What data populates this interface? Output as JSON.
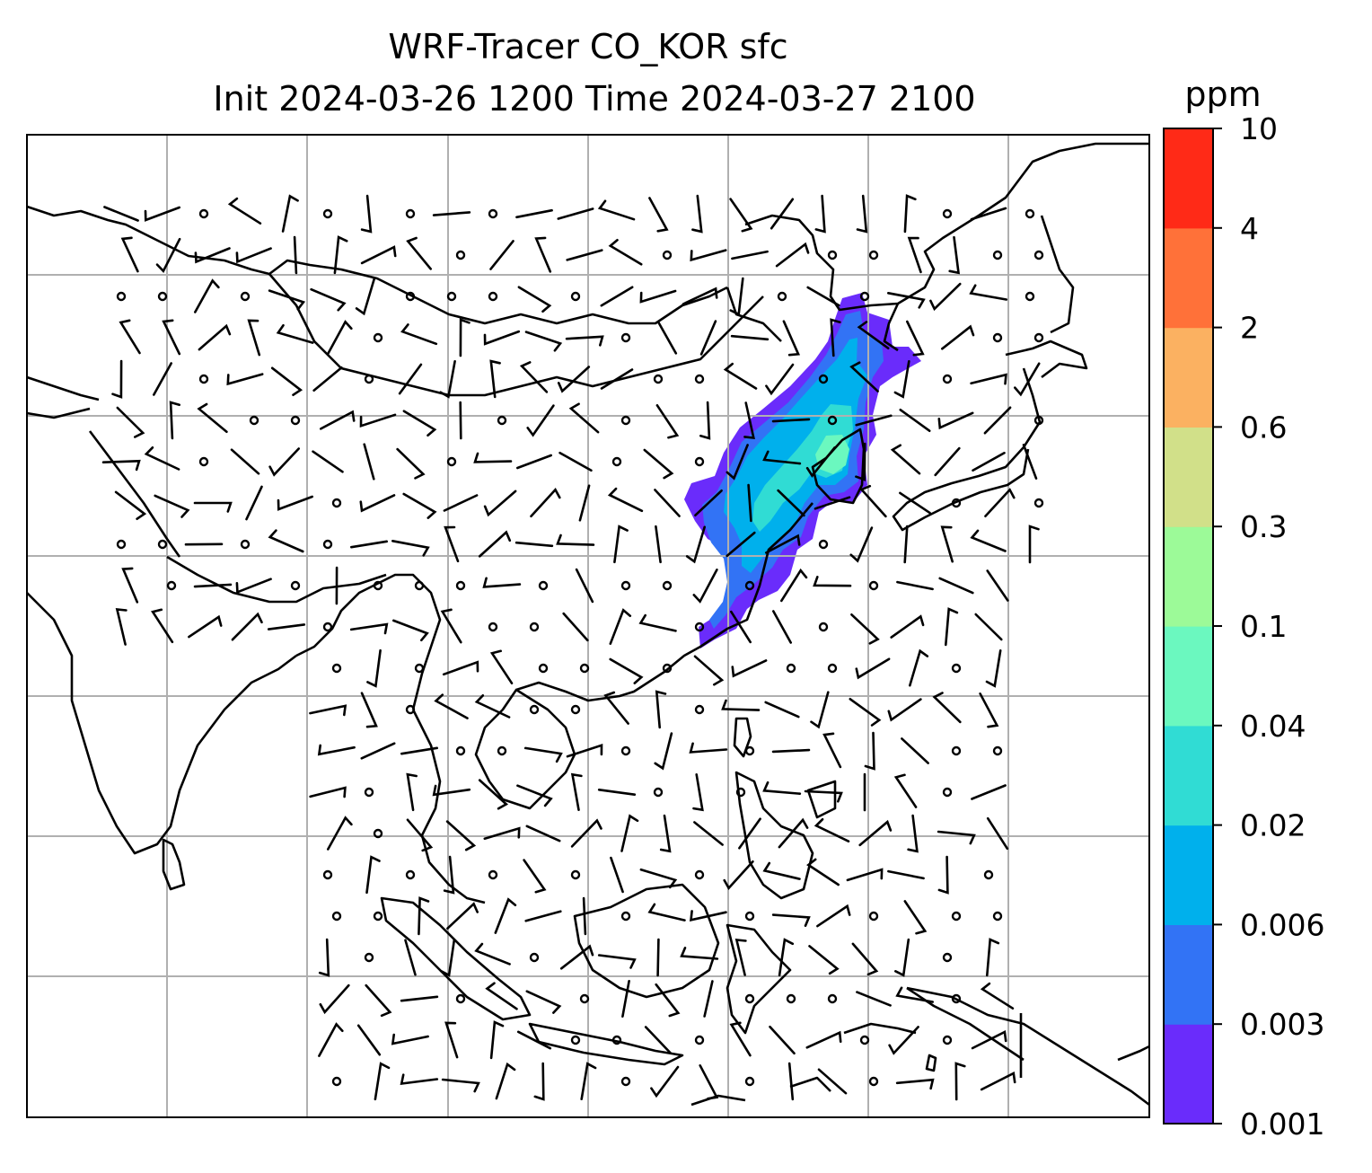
{
  "figure": {
    "title_line1": "WRF-Tracer CO_KOR sfc",
    "title_line2": "Init 2024-03-26 1200 Time 2024-03-27 2100"
  },
  "colorbar": {
    "unit": "ppm",
    "levels": [
      "0.001",
      "0.003",
      "0.006",
      "0.02",
      "0.04",
      "0.1",
      "0.3",
      "0.6",
      "2",
      "4",
      "10"
    ],
    "colors": [
      "#6a2cfb",
      "#3273f5",
      "#00b0ec",
      "#30dcd4",
      "#6bf8bf",
      "#9cfa98",
      "#d1e089",
      "#fbb161",
      "#ff7139",
      "#ff2a17"
    ]
  },
  "plume_colors": {
    "outer": "#6a2cfb",
    "mid": "#3273f5",
    "inner": "#00b0ec",
    "core": "#30dcd4",
    "peak": "#6bf8bf"
  },
  "map": {
    "coastline_color": "#000000",
    "gridline_color": "#b0b0b0",
    "gridlines": true
  }
}
